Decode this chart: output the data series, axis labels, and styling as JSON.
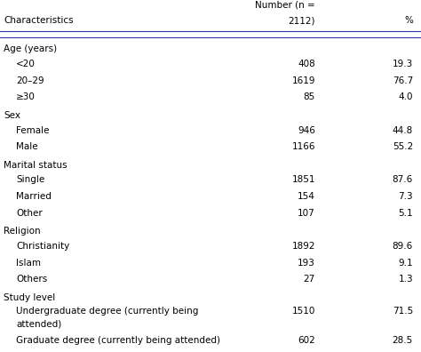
{
  "header_line1": "Number (n =",
  "header_line2": "2112)",
  "header_pct": "%",
  "col_characteristics": "Characteristics",
  "rows": [
    {
      "label": "Age (years)",
      "indent": 0,
      "number": "",
      "pct": "",
      "category": true
    },
    {
      "label": "<20",
      "indent": 1,
      "number": "408",
      "pct": "19.3",
      "category": false
    },
    {
      "label": "20–29",
      "indent": 1,
      "number": "1619",
      "pct": "76.7",
      "category": false
    },
    {
      "label": "≥30",
      "indent": 1,
      "number": "85",
      "pct": "4.0",
      "category": false
    },
    {
      "label": "Sex",
      "indent": 0,
      "number": "",
      "pct": "",
      "category": true
    },
    {
      "label": "Female",
      "indent": 1,
      "number": "946",
      "pct": "44.8",
      "category": false
    },
    {
      "label": "Male",
      "indent": 1,
      "number": "1166",
      "pct": "55.2",
      "category": false
    },
    {
      "label": "Marital status",
      "indent": 0,
      "number": "",
      "pct": "",
      "category": true
    },
    {
      "label": "Single",
      "indent": 1,
      "number": "1851",
      "pct": "87.6",
      "category": false
    },
    {
      "label": "Married",
      "indent": 1,
      "number": "154",
      "pct": "7.3",
      "category": false
    },
    {
      "label": "Other",
      "indent": 1,
      "number": "107",
      "pct": "5.1",
      "category": false
    },
    {
      "label": "Religion",
      "indent": 0,
      "number": "",
      "pct": "",
      "category": true
    },
    {
      "label": "Christianity",
      "indent": 1,
      "number": "1892",
      "pct": "89.6",
      "category": false
    },
    {
      "label": "Islam",
      "indent": 1,
      "number": "193",
      "pct": "9.1",
      "category": false
    },
    {
      "label": "Others",
      "indent": 1,
      "number": "27",
      "pct": "1.3",
      "category": false
    },
    {
      "label": "Study level",
      "indent": 0,
      "number": "",
      "pct": "",
      "category": true
    },
    {
      "label": "Undergraduate degree (currently being\nattended)",
      "indent": 1,
      "number": "1510",
      "pct": "71.5",
      "category": false
    },
    {
      "label": "Graduate degree (currently being attended)",
      "indent": 1,
      "number": "602",
      "pct": "28.5",
      "category": false
    }
  ],
  "bg_color": "#ffffff",
  "text_color": "#000000",
  "line_color": "#4040a0",
  "font_size": 7.5
}
